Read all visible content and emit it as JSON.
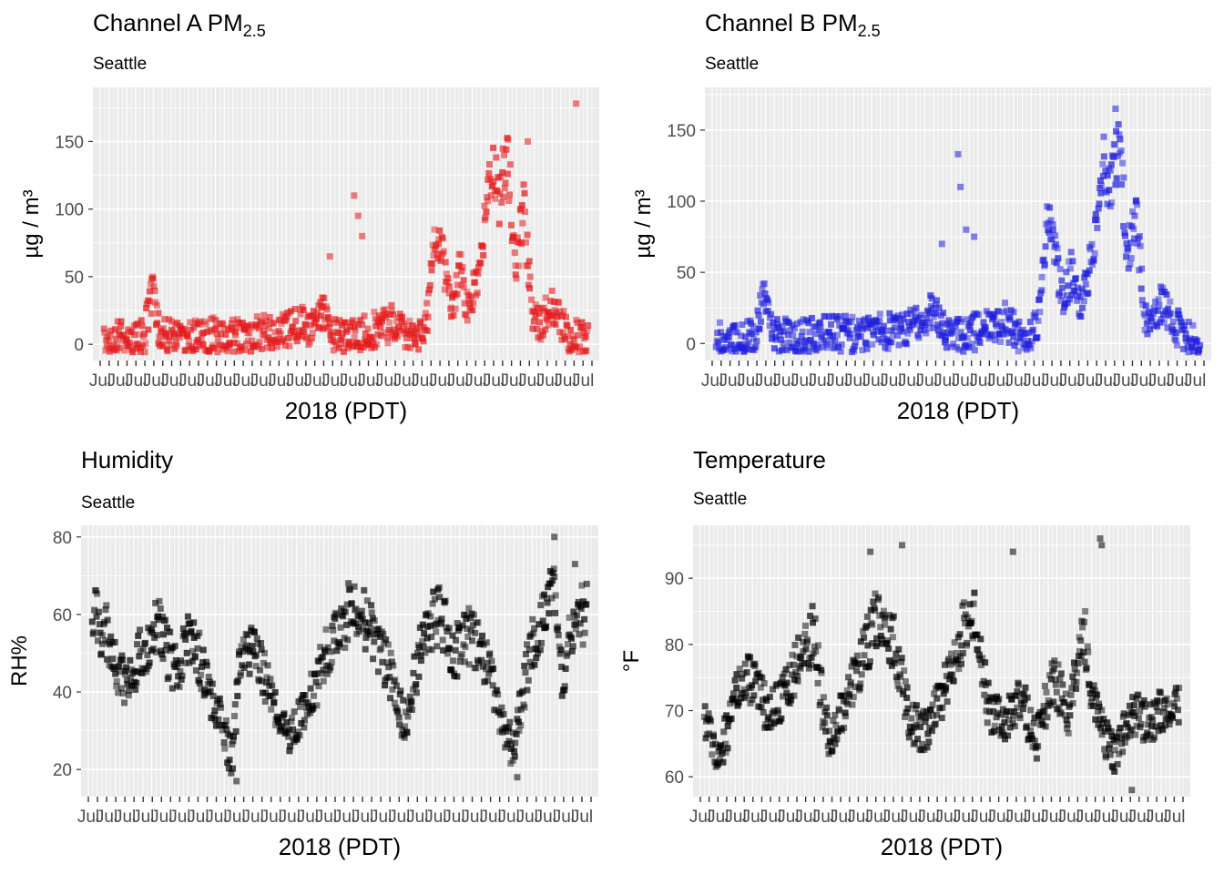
{
  "colors": {
    "panel_bg": "#ebebeb",
    "grid": "#ffffff",
    "axis_text": "#4d4d4d"
  },
  "chart_data": [
    {
      "type": "scatter",
      "title_main": "Channel A PM",
      "title_sub": "2.5",
      "subtitle": "Seattle",
      "xlabel": "2018 (PDT)",
      "ylabel": "µg / m³",
      "ylim": [
        -12,
        190
      ],
      "yticks": [
        0,
        50,
        100,
        150
      ],
      "color": "#e41a1c",
      "x_tick_labels": "Jul",
      "x_range_days": [
        0,
        60
      ],
      "series_profile": [
        [
          0,
          3
        ],
        [
          2,
          4
        ],
        [
          3,
          2
        ],
        [
          5,
          5
        ],
        [
          6,
          38
        ],
        [
          7,
          8
        ],
        [
          9,
          4
        ],
        [
          11,
          5
        ],
        [
          13,
          6
        ],
        [
          15,
          7
        ],
        [
          17,
          6
        ],
        [
          19,
          9
        ],
        [
          21,
          8
        ],
        [
          23,
          12
        ],
        [
          25,
          15
        ],
        [
          26,
          12
        ],
        [
          27,
          25
        ],
        [
          28,
          10
        ],
        [
          30,
          6
        ],
        [
          32,
          8
        ],
        [
          34,
          12
        ],
        [
          36,
          16
        ],
        [
          37,
          8
        ],
        [
          39,
          4
        ],
        [
          40,
          20
        ],
        [
          41,
          85
        ],
        [
          42,
          65
        ],
        [
          43,
          25
        ],
        [
          44,
          55
        ],
        [
          45,
          30
        ],
        [
          46,
          40
        ],
        [
          47,
          80
        ],
        [
          48,
          130
        ],
        [
          49,
          110
        ],
        [
          50,
          140
        ],
        [
          51,
          60
        ],
        [
          52,
          100
        ],
        [
          53,
          25
        ],
        [
          54,
          15
        ],
        [
          55,
          30
        ],
        [
          56,
          20
        ],
        [
          57,
          12
        ],
        [
          58,
          5
        ]
      ],
      "outliers": [
        [
          31,
          110
        ],
        [
          31.5,
          95
        ],
        [
          32,
          80
        ],
        [
          28,
          65
        ],
        [
          58.5,
          178
        ],
        [
          52.5,
          150
        ]
      ]
    },
    {
      "type": "scatter",
      "title_main": "Channel B PM",
      "title_sub": "2.5",
      "subtitle": "Seattle",
      "xlabel": "2018 (PDT)",
      "ylabel": "µg / m³",
      "ylim": [
        -12,
        180
      ],
      "yticks": [
        0,
        50,
        100,
        150
      ],
      "color": "#1f1fdd",
      "x_tick_labels": "Jul",
      "x_range_days": [
        0,
        60
      ],
      "series_profile": [
        [
          0,
          3
        ],
        [
          2,
          4
        ],
        [
          3,
          2
        ],
        [
          5,
          5
        ],
        [
          6,
          35
        ],
        [
          7,
          8
        ],
        [
          9,
          4
        ],
        [
          11,
          5
        ],
        [
          13,
          6
        ],
        [
          15,
          7
        ],
        [
          17,
          6
        ],
        [
          19,
          9
        ],
        [
          21,
          8
        ],
        [
          23,
          12
        ],
        [
          25,
          15
        ],
        [
          26,
          12
        ],
        [
          27,
          25
        ],
        [
          28,
          10
        ],
        [
          30,
          6
        ],
        [
          32,
          8
        ],
        [
          34,
          12
        ],
        [
          36,
          16
        ],
        [
          37,
          8
        ],
        [
          39,
          4
        ],
        [
          40,
          20
        ],
        [
          41,
          90
        ],
        [
          42,
          65
        ],
        [
          43,
          25
        ],
        [
          44,
          50
        ],
        [
          45,
          30
        ],
        [
          46,
          40
        ],
        [
          47,
          80
        ],
        [
          48,
          130
        ],
        [
          49,
          110
        ],
        [
          50,
          140
        ],
        [
          51,
          60
        ],
        [
          52,
          90
        ],
        [
          53,
          25
        ],
        [
          54,
          15
        ],
        [
          55,
          30
        ],
        [
          56,
          20
        ],
        [
          57,
          12
        ],
        [
          58,
          5
        ]
      ],
      "outliers": [
        [
          30,
          133
        ],
        [
          30.3,
          110
        ],
        [
          31,
          80
        ],
        [
          28,
          70
        ],
        [
          49.5,
          165
        ],
        [
          32,
          75
        ]
      ]
    },
    {
      "type": "scatter",
      "title_main": "Humidity",
      "title_sub": "",
      "subtitle": "Seattle",
      "xlabel": "2018 (PDT)",
      "ylabel": "RH%",
      "ylim": [
        13,
        83
      ],
      "yticks": [
        20,
        40,
        60,
        80
      ],
      "color": "#000000",
      "x_tick_labels": "Jul",
      "x_range_days": [
        0,
        60
      ],
      "series_profile": [
        [
          0,
          60
        ],
        [
          2,
          55
        ],
        [
          4,
          40
        ],
        [
          6,
          50
        ],
        [
          8,
          58
        ],
        [
          10,
          45
        ],
        [
          12,
          55
        ],
        [
          14,
          42
        ],
        [
          16,
          30
        ],
        [
          17,
          22
        ],
        [
          18,
          52
        ],
        [
          20,
          50
        ],
        [
          22,
          38
        ],
        [
          24,
          30
        ],
        [
          26,
          35
        ],
        [
          28,
          48
        ],
        [
          30,
          58
        ],
        [
          32,
          62
        ],
        [
          34,
          55
        ],
        [
          36,
          45
        ],
        [
          38,
          30
        ],
        [
          40,
          55
        ],
        [
          42,
          60
        ],
        [
          44,
          50
        ],
        [
          46,
          55
        ],
        [
          48,
          45
        ],
        [
          50,
          30
        ],
        [
          51,
          25
        ],
        [
          53,
          50
        ],
        [
          55,
          60
        ],
        [
          56,
          70
        ],
        [
          57,
          40
        ],
        [
          58,
          55
        ],
        [
          59,
          60
        ]
      ],
      "outliers": [
        [
          56,
          80
        ],
        [
          51.5,
          18
        ],
        [
          17.5,
          17
        ],
        [
          58.5,
          73
        ]
      ]
    },
    {
      "type": "scatter",
      "title_main": "Temperature",
      "title_sub": "",
      "subtitle": "Seattle",
      "xlabel": "2018 (PDT)",
      "ylabel": "°F",
      "ylim": [
        57,
        98
      ],
      "yticks": [
        60,
        70,
        80,
        90
      ],
      "color": "#000000",
      "x_tick_labels": "Jul",
      "x_range_days": [
        0,
        60
      ],
      "series_profile": [
        [
          0,
          68
        ],
        [
          2,
          63
        ],
        [
          4,
          72
        ],
        [
          6,
          75
        ],
        [
          8,
          70
        ],
        [
          10,
          72
        ],
        [
          12,
          78
        ],
        [
          14,
          82
        ],
        [
          15,
          70
        ],
        [
          16,
          65
        ],
        [
          18,
          72
        ],
        [
          20,
          78
        ],
        [
          22,
          85
        ],
        [
          24,
          80
        ],
        [
          26,
          68
        ],
        [
          28,
          67
        ],
        [
          30,
          72
        ],
        [
          32,
          80
        ],
        [
          34,
          85
        ],
        [
          36,
          70
        ],
        [
          38,
          68
        ],
        [
          40,
          72
        ],
        [
          42,
          65
        ],
        [
          44,
          75
        ],
        [
          46,
          70
        ],
        [
          48,
          82
        ],
        [
          49,
          72
        ],
        [
          50,
          68
        ],
        [
          52,
          63
        ],
        [
          54,
          70
        ],
        [
          56,
          68
        ],
        [
          58,
          70
        ]
      ],
      "outliers": [
        [
          50,
          96
        ],
        [
          50.2,
          95
        ],
        [
          25,
          95
        ],
        [
          21,
          94
        ],
        [
          39,
          94
        ],
        [
          54,
          58
        ]
      ]
    }
  ]
}
